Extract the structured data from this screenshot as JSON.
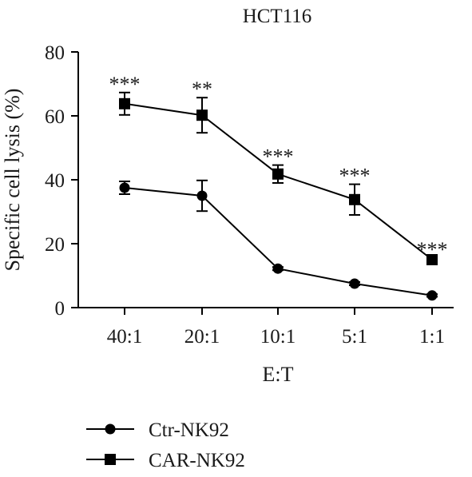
{
  "chart_data": {
    "type": "line",
    "title": "HCT116",
    "xlabel": "E:T",
    "ylabel": "Specific cell lysis (%)",
    "categories": [
      "40:1",
      "20:1",
      "10:1",
      "5:1",
      "1:1"
    ],
    "ylim": [
      0,
      80
    ],
    "yticks": [
      0,
      20,
      40,
      60,
      80
    ],
    "grid": false,
    "legend_position": "bottom-left",
    "series": [
      {
        "name": "Ctr-NK92",
        "marker": "circle",
        "color": "#000000",
        "values": [
          37.5,
          35,
          12.2,
          7.5,
          3.8
        ],
        "errors": [
          2.0,
          4.8,
          0.5,
          0.5,
          0.4
        ]
      },
      {
        "name": "CAR-NK92",
        "marker": "square",
        "color": "#000000",
        "values": [
          63.8,
          60.2,
          41.8,
          33.8,
          15
        ],
        "errors": [
          3.5,
          5.5,
          2.8,
          4.8,
          0.5
        ],
        "annotations": [
          "***",
          "**",
          "***",
          "***",
          "***"
        ]
      }
    ]
  }
}
